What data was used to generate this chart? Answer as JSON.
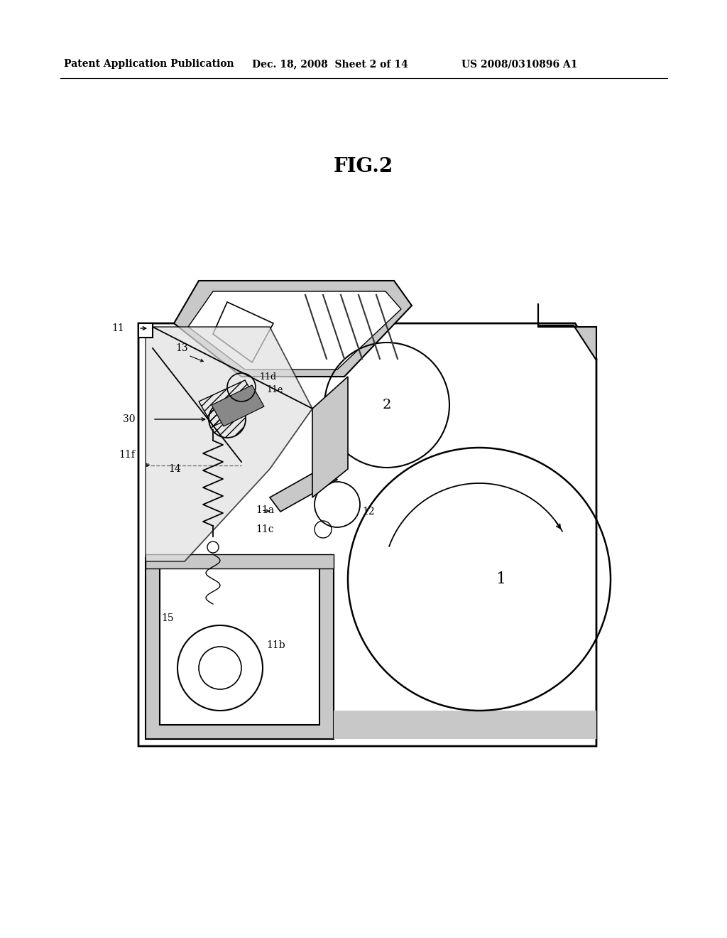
{
  "header_left": "Patent Application Publication",
  "header_mid": "Dec. 18, 2008  Sheet 2 of 14",
  "header_right": "US 2008/0310896 A1",
  "title": "FIG.2",
  "bg_color": "#ffffff",
  "lc": "#000000",
  "gray_fill": "#c8c8c8",
  "gray_medium": "#aaaaaa",
  "gray_dark": "#888888",
  "gray_light": "#e0e0e0"
}
